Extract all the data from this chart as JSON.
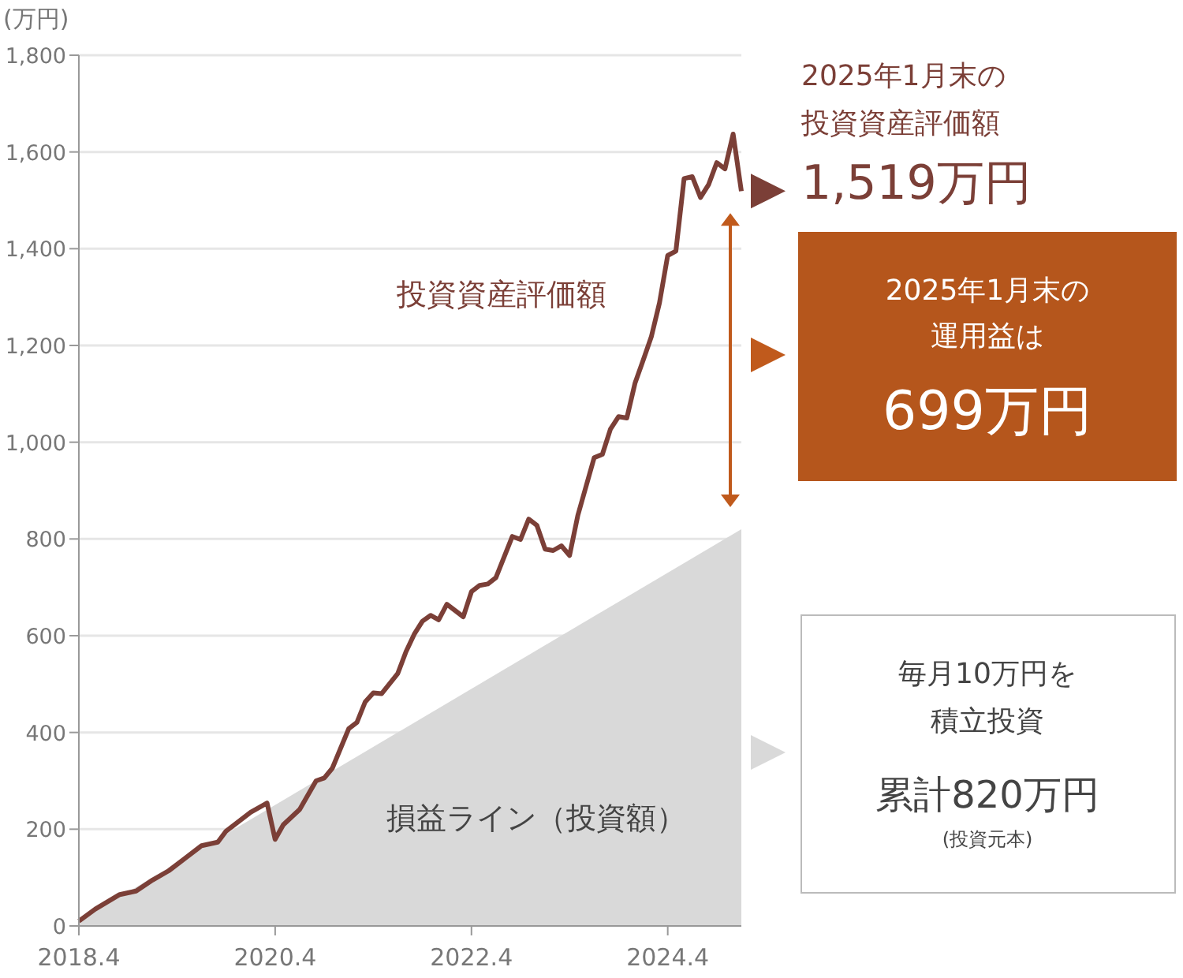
{
  "chart_data": {
    "type": "line",
    "ylabel": "(万円)",
    "xlim": [
      "2018-04",
      "2025-01"
    ],
    "xticks": [
      {
        "value": "2018-04",
        "label": "2018.4"
      },
      {
        "value": "2020-04",
        "label": "2020.4"
      },
      {
        "value": "2022-04",
        "label": "2022.4"
      },
      {
        "value": "2024-04",
        "label": "2024.4"
      }
    ],
    "ylim": [
      0,
      1800
    ],
    "yticks": [
      0,
      200,
      400,
      600,
      800,
      {
        "value": 1000,
        "label": "1,000"
      },
      {
        "value": 1200,
        "label": "1,200"
      },
      {
        "value": 1400,
        "label": "1,400"
      },
      {
        "value": 1600,
        "label": "1,600"
      },
      {
        "value": 1800,
        "label": "1,800"
      }
    ],
    "grid": "y",
    "legend": false,
    "series": [
      {
        "name": "損益ライン（投資額）",
        "type": "area",
        "color": "#d9d9d9",
        "x": [
          "2018-04",
          "2025-01"
        ],
        "values": [
          10,
          820
        ]
      },
      {
        "name": "投資資産評価額",
        "color": "#7b3f37",
        "x": [
          "2018-04",
          "2018-06",
          "2018-09",
          "2018-11",
          "2019-01",
          "2019-03",
          "2019-05",
          "2019-07",
          "2019-09",
          "2019-10",
          "2020-01",
          "2020-03",
          "2020-04",
          "2020-05",
          "2020-06",
          "2020-07",
          "2020-09",
          "2020-10",
          "2020-11",
          "2021-01",
          "2021-02",
          "2021-03",
          "2021-04",
          "2021-05",
          "2021-07",
          "2021-08",
          "2021-09",
          "2021-10",
          "2021-11",
          "2021-12",
          "2022-01",
          "2022-03",
          "2022-04",
          "2022-05",
          "2022-06",
          "2022-07",
          "2022-09",
          "2022-10",
          "2022-11",
          "2022-12",
          "2023-01",
          "2023-02",
          "2023-03",
          "2023-04",
          "2023-05",
          "2023-07",
          "2023-08",
          "2023-09",
          "2023-10",
          "2023-11",
          "2023-12",
          "2024-01",
          "2024-02",
          "2024-03",
          "2024-04",
          "2024-05",
          "2024-06",
          "2024-07",
          "2024-08",
          "2024-09",
          "2024-10",
          "2024-11",
          "2024-12",
          "2025-01"
        ],
        "values": [
          10,
          35,
          65,
          72,
          95,
          114,
          140,
          166,
          173,
          196,
          235,
          254,
          179,
          209,
          225,
          241,
          300,
          306,
          326,
          408,
          421,
          463,
          482,
          480,
          522,
          567,
          603,
          630,
          642,
          633,
          665,
          639,
          691,
          704,
          707,
          720,
          805,
          799,
          841,
          828,
          779,
          776,
          786,
          766,
          848,
          968,
          975,
          1027,
          1053,
          1050,
          1122,
          1170,
          1219,
          1288,
          1386,
          1395,
          1545,
          1549,
          1506,
          1533,
          1578,
          1565,
          1637,
          1519
        ]
      }
    ],
    "annotations": [
      "2025年1月末の",
      "投資資産評価額",
      "1,519万円",
      "2025年1月末の",
      "運用益は",
      "699万円",
      "毎月10万円を",
      "積立投資",
      "累計820万円",
      "(投資元本)"
    ]
  }
}
